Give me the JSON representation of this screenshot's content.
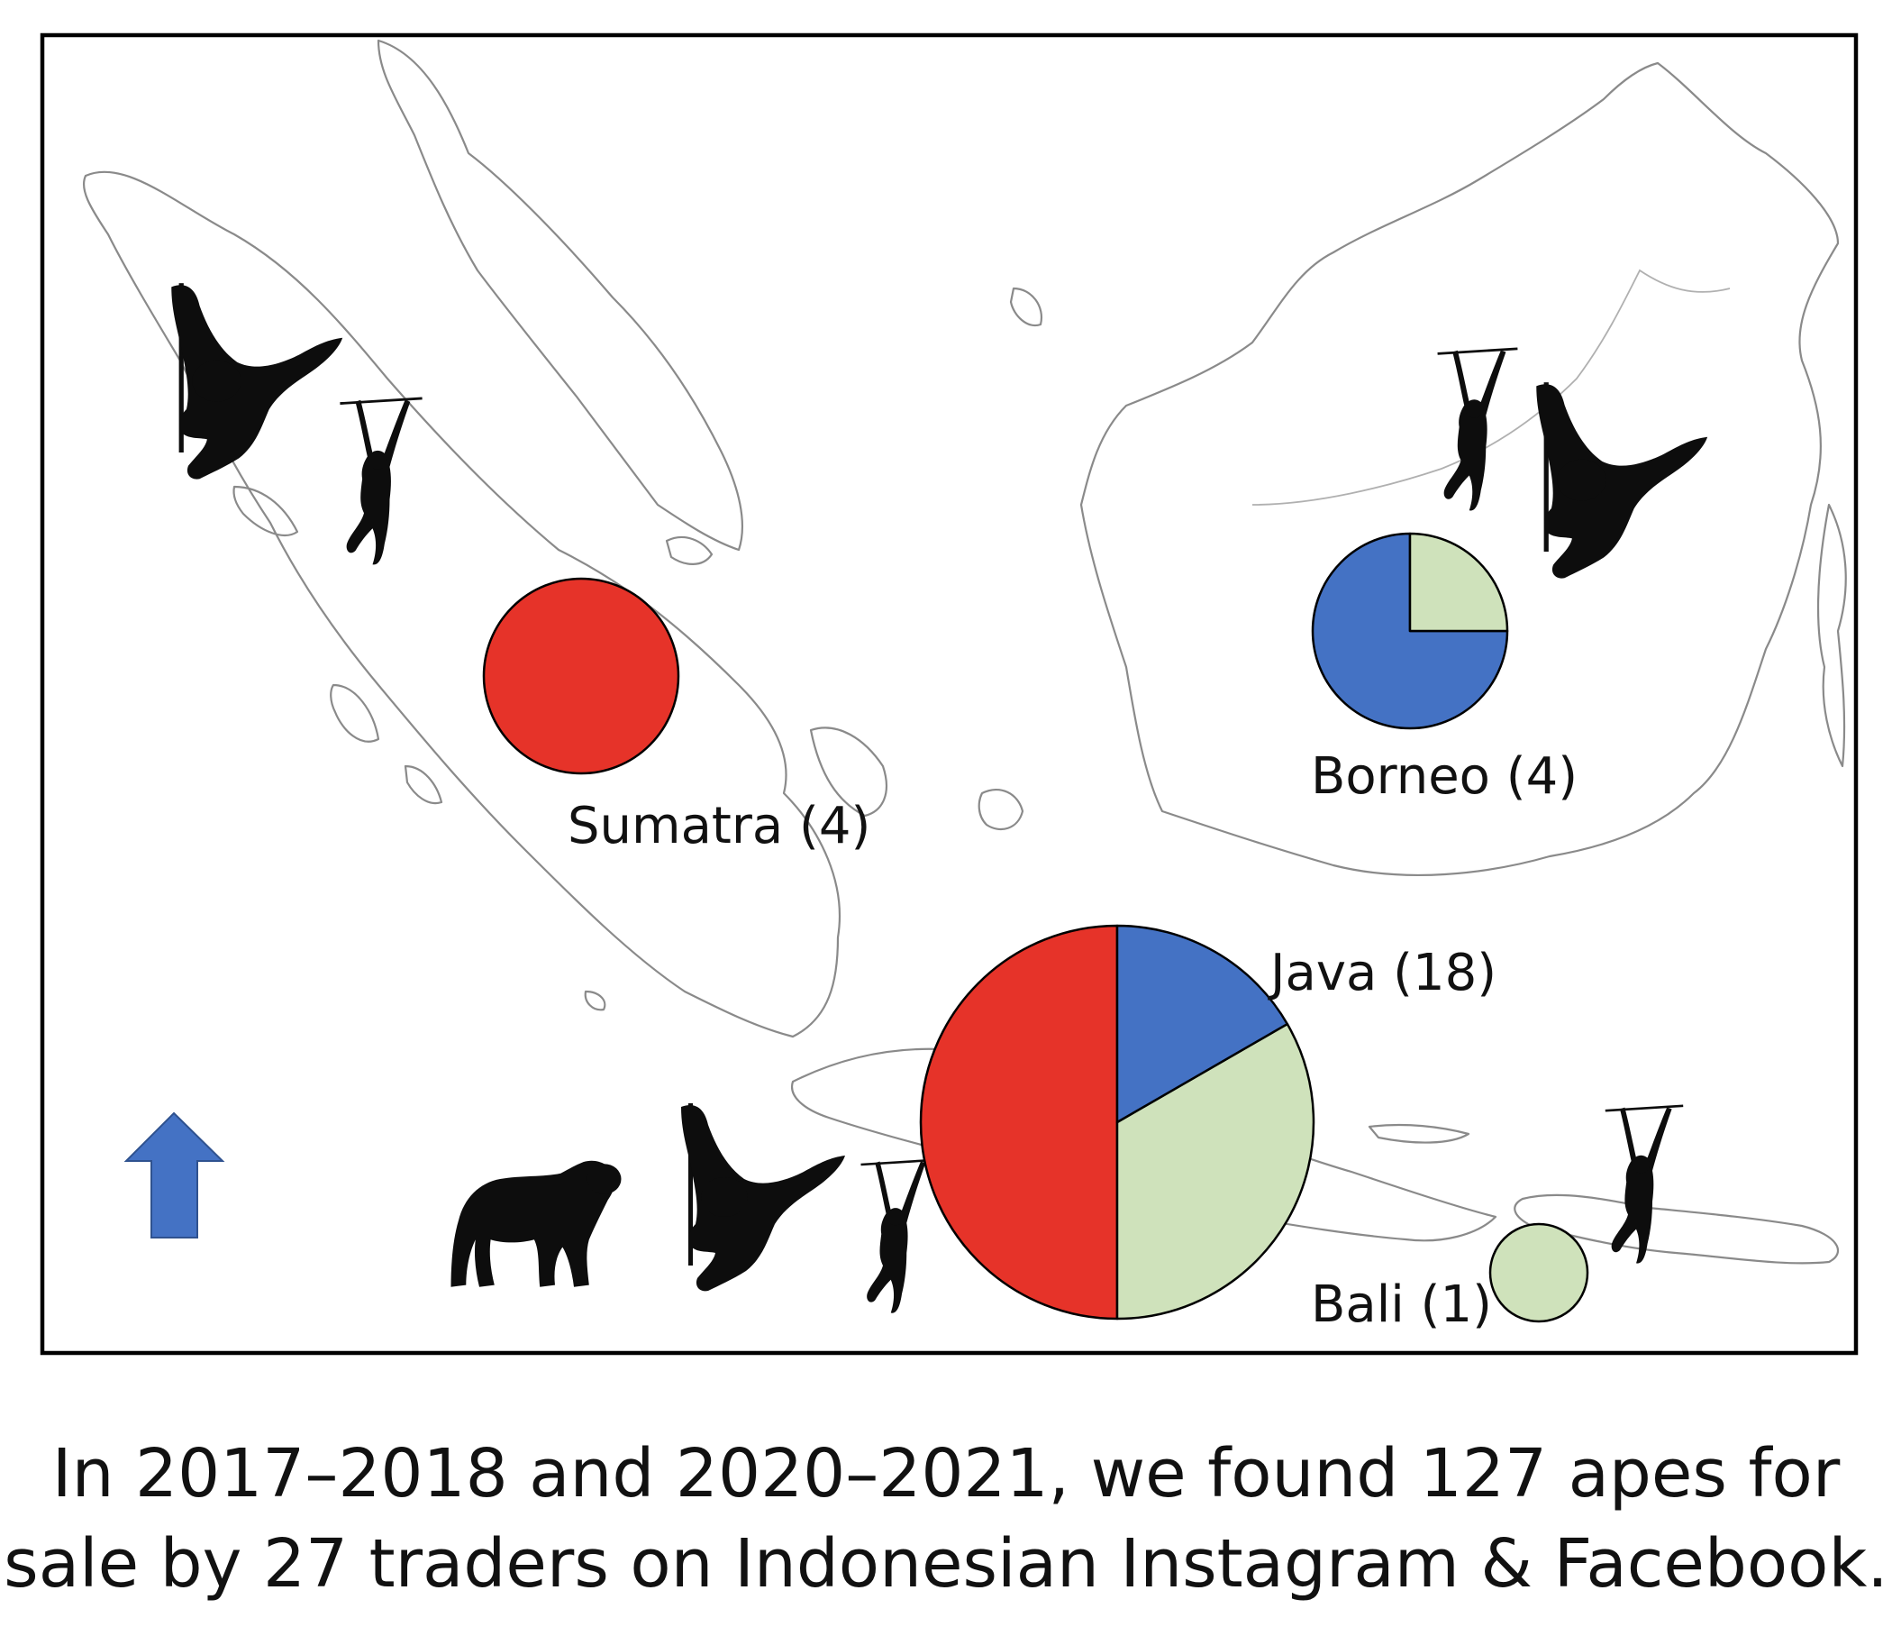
{
  "figure": {
    "caption_line1": "In 2017–2018 and 2020–2021, we found 127 apes for",
    "caption_line2": "sale by 27 traders on Indonesian Instagram & Facebook."
  },
  "map": {
    "north_arrow_color": "#4472c4",
    "regions": [
      {
        "id": "sumatra",
        "label": "Sumatra (4)",
        "count": 4,
        "slices": [
          {
            "value": 1.0,
            "color": "#e63329"
          }
        ]
      },
      {
        "id": "borneo",
        "label": "Borneo (4)",
        "count": 4,
        "slices": [
          {
            "value": 0.75,
            "color": "#4472c4"
          },
          {
            "value": 0.25,
            "color": "#cfe2bb"
          }
        ]
      },
      {
        "id": "java",
        "label": "Java (18)",
        "count": 18,
        "slices": [
          {
            "value": 0.5,
            "color": "#e63329"
          },
          {
            "value": 0.3333,
            "color": "#cfe2bb"
          },
          {
            "value": 0.1667,
            "color": "#4472c4"
          }
        ]
      },
      {
        "id": "bali",
        "label": "Bali (1)",
        "count": 1,
        "slices": [
          {
            "value": 1.0,
            "color": "#cfe2bb"
          }
        ]
      }
    ],
    "icons": [
      "orangutan-icon",
      "gibbon-icon",
      "chimpanzee-icon"
    ]
  }
}
